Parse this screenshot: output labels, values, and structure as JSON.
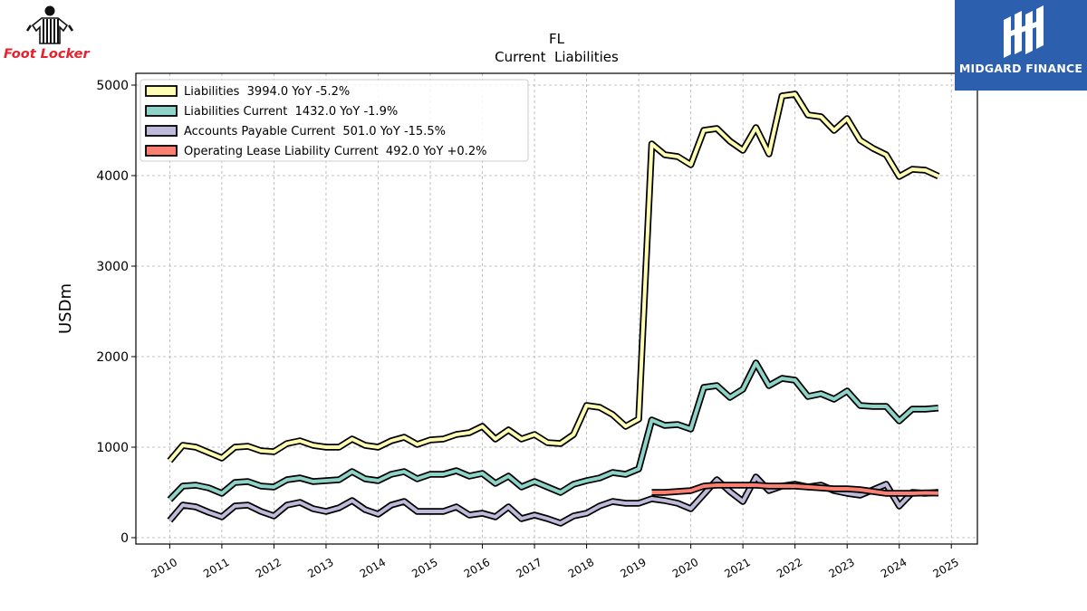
{
  "logos": {
    "left_text": "Foot Locker",
    "right_text": "MIDGARD FINANCE",
    "left_icon": "referee-icon",
    "right_icon": "midgard-m-icon"
  },
  "chart_data": {
    "type": "line",
    "title": "FL",
    "subtitle": "Current  Liabilities",
    "ylabel": "USDm",
    "xlabel": "",
    "ylim": [
      -70,
      5130
    ],
    "xlim": [
      2009.35,
      2025.5
    ],
    "yticks": [
      0,
      1000,
      2000,
      3000,
      4000,
      5000
    ],
    "xticks": [
      "2010",
      "2011",
      "2012",
      "2013",
      "2014",
      "2015",
      "2016",
      "2017",
      "2018",
      "2019",
      "2020",
      "2021",
      "2022",
      "2023",
      "2024",
      "2025"
    ],
    "grid": true,
    "legend_position": "top-left",
    "series": [
      {
        "name": "Liabilities  3994.0 YoY -5.2%",
        "color": "#ffffb3",
        "x": [
          2010.0,
          2010.25,
          2010.5,
          2010.75,
          2011.0,
          2011.25,
          2011.5,
          2011.75,
          2012.0,
          2012.25,
          2012.5,
          2012.75,
          2013.0,
          2013.25,
          2013.5,
          2013.75,
          2014.0,
          2014.25,
          2014.5,
          2014.75,
          2015.0,
          2015.25,
          2015.5,
          2015.75,
          2016.0,
          2016.25,
          2016.5,
          2016.75,
          2017.0,
          2017.25,
          2017.5,
          2017.75,
          2018.0,
          2018.25,
          2018.5,
          2018.75,
          2019.0,
          2019.25,
          2019.5,
          2019.75,
          2020.0,
          2020.25,
          2020.5,
          2020.75,
          2021.0,
          2021.25,
          2021.5,
          2021.75,
          2022.0,
          2022.25,
          2022.5,
          2022.75,
          2023.0,
          2023.25,
          2023.5,
          2023.75,
          2024.0,
          2024.25,
          2024.5,
          2024.75
        ],
        "values": [
          850,
          1020,
          1000,
          940,
          880,
          1000,
          1010,
          960,
          950,
          1040,
          1070,
          1020,
          1000,
          1000,
          1090,
          1020,
          1000,
          1070,
          1110,
          1030,
          1080,
          1090,
          1140,
          1160,
          1230,
          1090,
          1190,
          1090,
          1140,
          1050,
          1040,
          1140,
          1460,
          1440,
          1360,
          1230,
          1310,
          4350,
          4230,
          4210,
          4120,
          4500,
          4520,
          4380,
          4280,
          4530,
          4240,
          4880,
          4900,
          4670,
          4650,
          4500,
          4630,
          4390,
          4300,
          4230,
          3990,
          4070,
          4060,
          3994
        ]
      },
      {
        "name": "Liabilities Current  1432.0 YoY -1.9%",
        "color": "#8dd3c7",
        "x": [
          2010.0,
          2010.25,
          2010.5,
          2010.75,
          2011.0,
          2011.25,
          2011.5,
          2011.75,
          2012.0,
          2012.25,
          2012.5,
          2012.75,
          2013.0,
          2013.25,
          2013.5,
          2013.75,
          2014.0,
          2014.25,
          2014.5,
          2014.75,
          2015.0,
          2015.25,
          2015.5,
          2015.75,
          2016.0,
          2016.25,
          2016.5,
          2016.75,
          2017.0,
          2017.25,
          2017.5,
          2017.75,
          2018.0,
          2018.25,
          2018.5,
          2018.75,
          2019.0,
          2019.25,
          2019.5,
          2019.75,
          2020.0,
          2020.25,
          2020.5,
          2020.75,
          2021.0,
          2021.25,
          2021.5,
          2021.75,
          2022.0,
          2022.25,
          2022.5,
          2022.75,
          2023.0,
          2023.25,
          2023.5,
          2023.75,
          2024.0,
          2024.25,
          2024.5,
          2024.75
        ],
        "values": [
          420,
          570,
          580,
          550,
          490,
          610,
          620,
          570,
          560,
          640,
          660,
          620,
          630,
          640,
          730,
          650,
          630,
          700,
          730,
          650,
          700,
          700,
          740,
          680,
          710,
          600,
          680,
          560,
          620,
          560,
          500,
          590,
          630,
          660,
          720,
          700,
          760,
          1300,
          1240,
          1250,
          1200,
          1660,
          1680,
          1550,
          1640,
          1930,
          1680,
          1760,
          1740,
          1560,
          1590,
          1530,
          1620,
          1460,
          1450,
          1450,
          1290,
          1420,
          1420,
          1432
        ]
      },
      {
        "name": "Accounts Payable Current  501.0 YoY -15.5%",
        "color": "#bebada",
        "x": [
          2010.0,
          2010.25,
          2010.5,
          2010.75,
          2011.0,
          2011.25,
          2011.5,
          2011.75,
          2012.0,
          2012.25,
          2012.5,
          2012.75,
          2013.0,
          2013.25,
          2013.5,
          2013.75,
          2014.0,
          2014.25,
          2014.5,
          2014.75,
          2015.0,
          2015.25,
          2015.5,
          2015.75,
          2016.0,
          2016.25,
          2016.5,
          2016.75,
          2017.0,
          2017.25,
          2017.5,
          2017.75,
          2018.0,
          2018.25,
          2018.5,
          2018.75,
          2019.0,
          2019.25,
          2019.5,
          2019.75,
          2020.0,
          2020.25,
          2020.5,
          2020.75,
          2021.0,
          2021.25,
          2021.5,
          2021.75,
          2022.0,
          2022.25,
          2022.5,
          2022.75,
          2023.0,
          2023.25,
          2023.5,
          2023.75,
          2024.0,
          2024.25,
          2024.5,
          2024.75
        ],
        "values": [
          190,
          360,
          340,
          280,
          230,
          350,
          360,
          290,
          240,
          360,
          390,
          320,
          290,
          330,
          410,
          310,
          260,
          360,
          400,
          290,
          290,
          290,
          340,
          250,
          270,
          230,
          340,
          210,
          250,
          210,
          160,
          240,
          270,
          350,
          400,
          380,
          380,
          430,
          410,
          380,
          320,
          480,
          640,
          510,
          400,
          670,
          520,
          570,
          590,
          560,
          580,
          520,
          490,
          470,
          530,
          590,
          350,
          500,
          490,
          501
        ]
      },
      {
        "name": "Operating Lease Liability Current  492.0 YoY +0.2%",
        "color": "#fb8072",
        "x": [
          2019.25,
          2019.5,
          2019.75,
          2020.0,
          2020.25,
          2020.5,
          2020.75,
          2021.0,
          2021.25,
          2021.5,
          2021.75,
          2022.0,
          2022.25,
          2022.5,
          2022.75,
          2023.0,
          2023.25,
          2023.5,
          2023.75,
          2024.0,
          2024.25,
          2024.5,
          2024.75
        ],
        "values": [
          500,
          500,
          510,
          520,
          570,
          580,
          580,
          580,
          580,
          570,
          570,
          570,
          560,
          550,
          540,
          540,
          530,
          510,
          490,
          490,
          490,
          495,
          492
        ]
      }
    ]
  }
}
